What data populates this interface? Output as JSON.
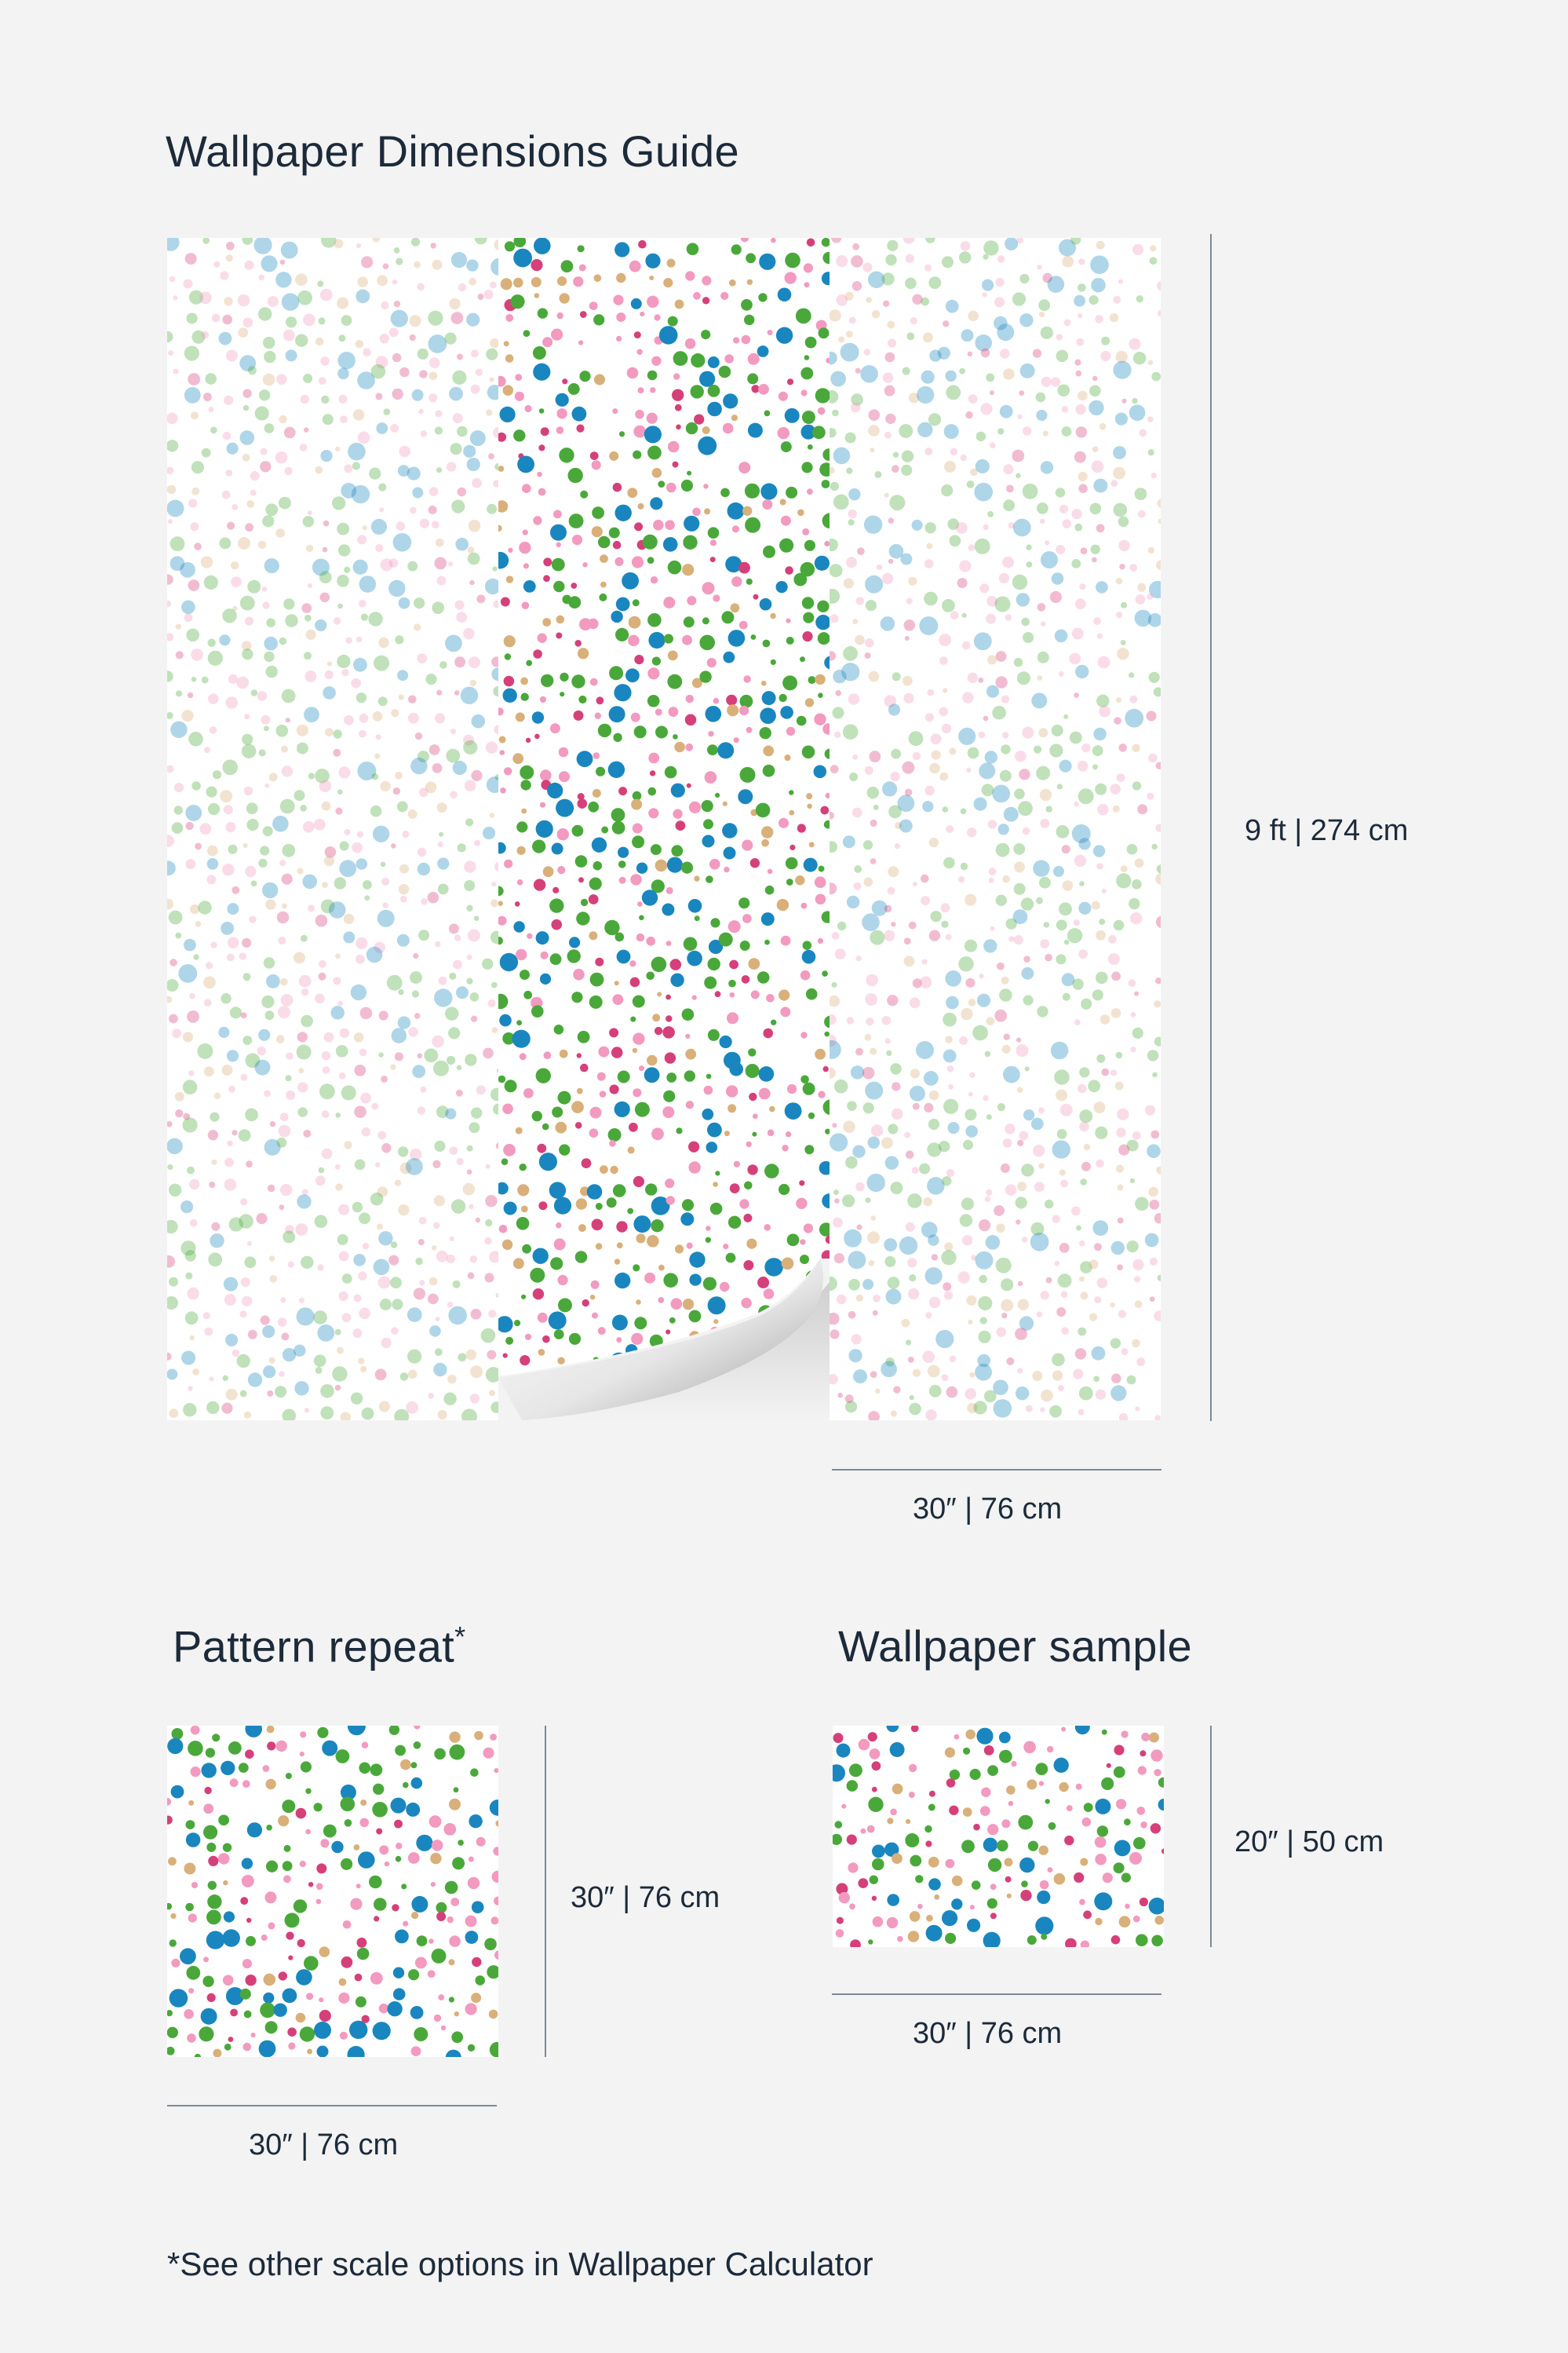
{
  "title": "Wallpaper Dimensions Guide",
  "main_height_label": "9 ft | 274 cm",
  "main_width_label": "30″ | 76 cm",
  "pattern_repeat": {
    "heading": "Pattern repeat",
    "asterisk": "*",
    "height_label": "30″ | 76 cm",
    "width_label": "30″ | 76 cm"
  },
  "sample": {
    "heading": "Wallpaper sample",
    "height_label": "20″ | 50 cm",
    "width_label": "30″ | 76 cm"
  },
  "footnote": "*See other scale options in Wallpaper Calculator",
  "colors": {
    "background": "#f3f3f3",
    "text": "#1c2a3a",
    "dot_blue": "#1a86bf",
    "dot_green": "#4aa83a",
    "dot_pink": "#d6407a",
    "dot_light_pink": "#f29ac0",
    "dot_tan": "#d9b07a"
  }
}
